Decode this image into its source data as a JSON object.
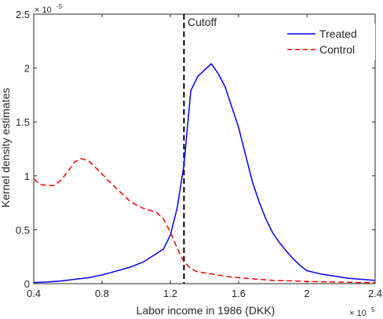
{
  "chart_data": {
    "type": "line",
    "title": "",
    "xlabel": "Labor income in 1986 (DKK)",
    "ylabel": "Kernel density estimates",
    "x_exponent_label": "× 10",
    "x_exponent": "5",
    "y_exponent_label": "× 10",
    "y_exponent": "-5",
    "xlim": [
      0.4,
      2.4
    ],
    "ylim": [
      0,
      2.5
    ],
    "xticks": [
      0.4,
      0.8,
      1.2,
      1.6,
      2.0,
      2.4
    ],
    "xtick_labels": [
      "0.4",
      "0.8",
      "1.2",
      "1.6",
      "2",
      "2.4"
    ],
    "yticks": [
      0,
      0.5,
      1,
      1.5,
      2,
      2.5
    ],
    "ytick_labels": [
      "0",
      "0.5",
      "1",
      "1.5",
      "2",
      "2.5"
    ],
    "legend_position": "top-right",
    "grid": false,
    "cutoff": {
      "x": 1.28,
      "label": "Cutoff",
      "color": "#000000",
      "style": "dashed"
    },
    "series": [
      {
        "name": "Treated",
        "color": "#0000ff",
        "style": "solid",
        "x": [
          0.4,
          0.48,
          0.56,
          0.64,
          0.72,
          0.8,
          0.88,
          0.96,
          1.04,
          1.12,
          1.16,
          1.2,
          1.24,
          1.28,
          1.32,
          1.36,
          1.4,
          1.44,
          1.48,
          1.52,
          1.56,
          1.6,
          1.64,
          1.68,
          1.72,
          1.76,
          1.8,
          1.84,
          1.88,
          1.92,
          1.96,
          2.0,
          2.08,
          2.16,
          2.24,
          2.32,
          2.4
        ],
        "values": [
          0.01,
          0.015,
          0.025,
          0.04,
          0.055,
          0.08,
          0.115,
          0.15,
          0.2,
          0.28,
          0.32,
          0.45,
          0.7,
          1.1,
          1.79,
          1.92,
          1.98,
          2.04,
          1.95,
          1.83,
          1.64,
          1.45,
          1.2,
          0.95,
          0.76,
          0.6,
          0.47,
          0.38,
          0.3,
          0.23,
          0.17,
          0.12,
          0.09,
          0.07,
          0.05,
          0.04,
          0.03
        ]
      },
      {
        "name": "Control",
        "color": "#ff0000",
        "style": "dashed",
        "x": [
          0.4,
          0.44,
          0.48,
          0.52,
          0.56,
          0.6,
          0.64,
          0.68,
          0.72,
          0.76,
          0.8,
          0.84,
          0.88,
          0.92,
          0.96,
          1.0,
          1.04,
          1.08,
          1.12,
          1.16,
          1.2,
          1.24,
          1.28,
          1.32,
          1.36,
          1.4,
          1.48,
          1.56,
          1.64,
          1.72,
          1.8,
          1.92,
          2.0,
          2.16,
          2.32,
          2.4
        ],
        "values": [
          0.97,
          0.92,
          0.91,
          0.91,
          0.96,
          1.04,
          1.13,
          1.16,
          1.14,
          1.08,
          1.02,
          0.95,
          0.89,
          0.83,
          0.77,
          0.73,
          0.7,
          0.68,
          0.66,
          0.6,
          0.48,
          0.33,
          0.2,
          0.14,
          0.11,
          0.1,
          0.08,
          0.06,
          0.05,
          0.04,
          0.03,
          0.025,
          0.02,
          0.015,
          0.01,
          0.01
        ]
      }
    ]
  }
}
